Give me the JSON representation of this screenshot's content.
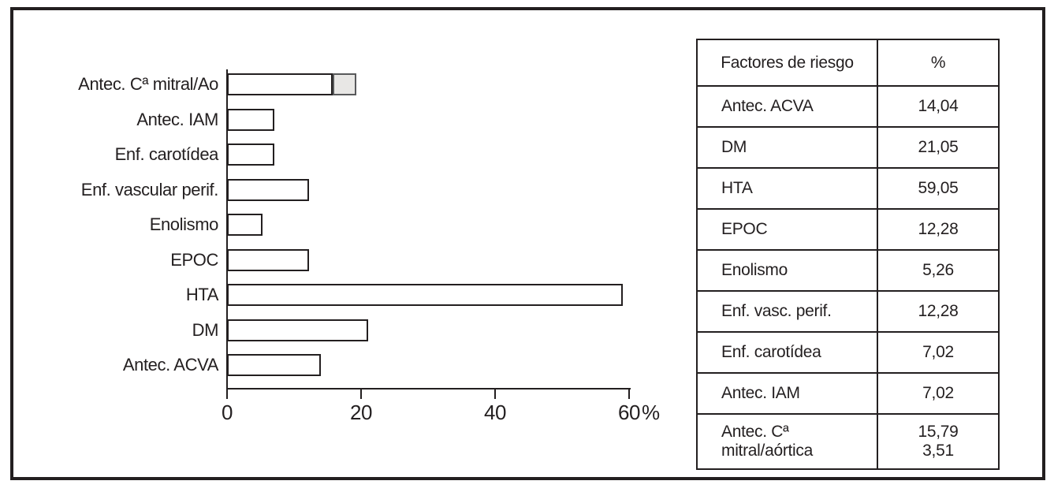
{
  "chart_data": {
    "type": "bar",
    "orientation": "horizontal",
    "categories": [
      "Antec. Cª mitral/Ao",
      "Antec. IAM",
      "Enf. carotídea",
      "Enf. vascular perif.",
      "Enolismo",
      "EPOC",
      "HTA",
      "DM",
      "Antec. ACVA"
    ],
    "series": [
      {
        "name": "mitral",
        "fill": "#ffffff",
        "values": [
          15.79,
          7.02,
          7.02,
          12.28,
          5.26,
          12.28,
          59.05,
          21.05,
          14.04
        ]
      },
      {
        "name": "aortica",
        "fill": "#e8e7e5",
        "values": [
          3.51,
          0,
          0,
          0,
          0,
          0,
          0,
          0,
          0
        ]
      }
    ],
    "xlim": [
      0,
      60
    ],
    "xticks": [
      0,
      20,
      40,
      60
    ],
    "x_unit_suffix": "%",
    "grid": false,
    "bar_border_color": "#231f20",
    "axis_color": "#231f20"
  },
  "table": {
    "headers": [
      "Factores de riesgo",
      "%"
    ],
    "rows": [
      {
        "factor": "Antec. ACVA",
        "pct": "14,04"
      },
      {
        "factor": "DM",
        "pct": "21,05"
      },
      {
        "factor": "HTA",
        "pct": "59,05"
      },
      {
        "factor": "EPOC",
        "pct": "12,28"
      },
      {
        "factor": "Enolismo",
        "pct": "5,26"
      },
      {
        "factor": "Enf. vasc. perif.",
        "pct": "12,28"
      },
      {
        "factor": "Enf. carotídea",
        "pct": "7,02"
      },
      {
        "factor": "Antec. IAM",
        "pct": "7,02"
      },
      {
        "factor": "Antec. Cª\nmitral/aórtica",
        "pct": "15,79\n3,51"
      }
    ]
  }
}
